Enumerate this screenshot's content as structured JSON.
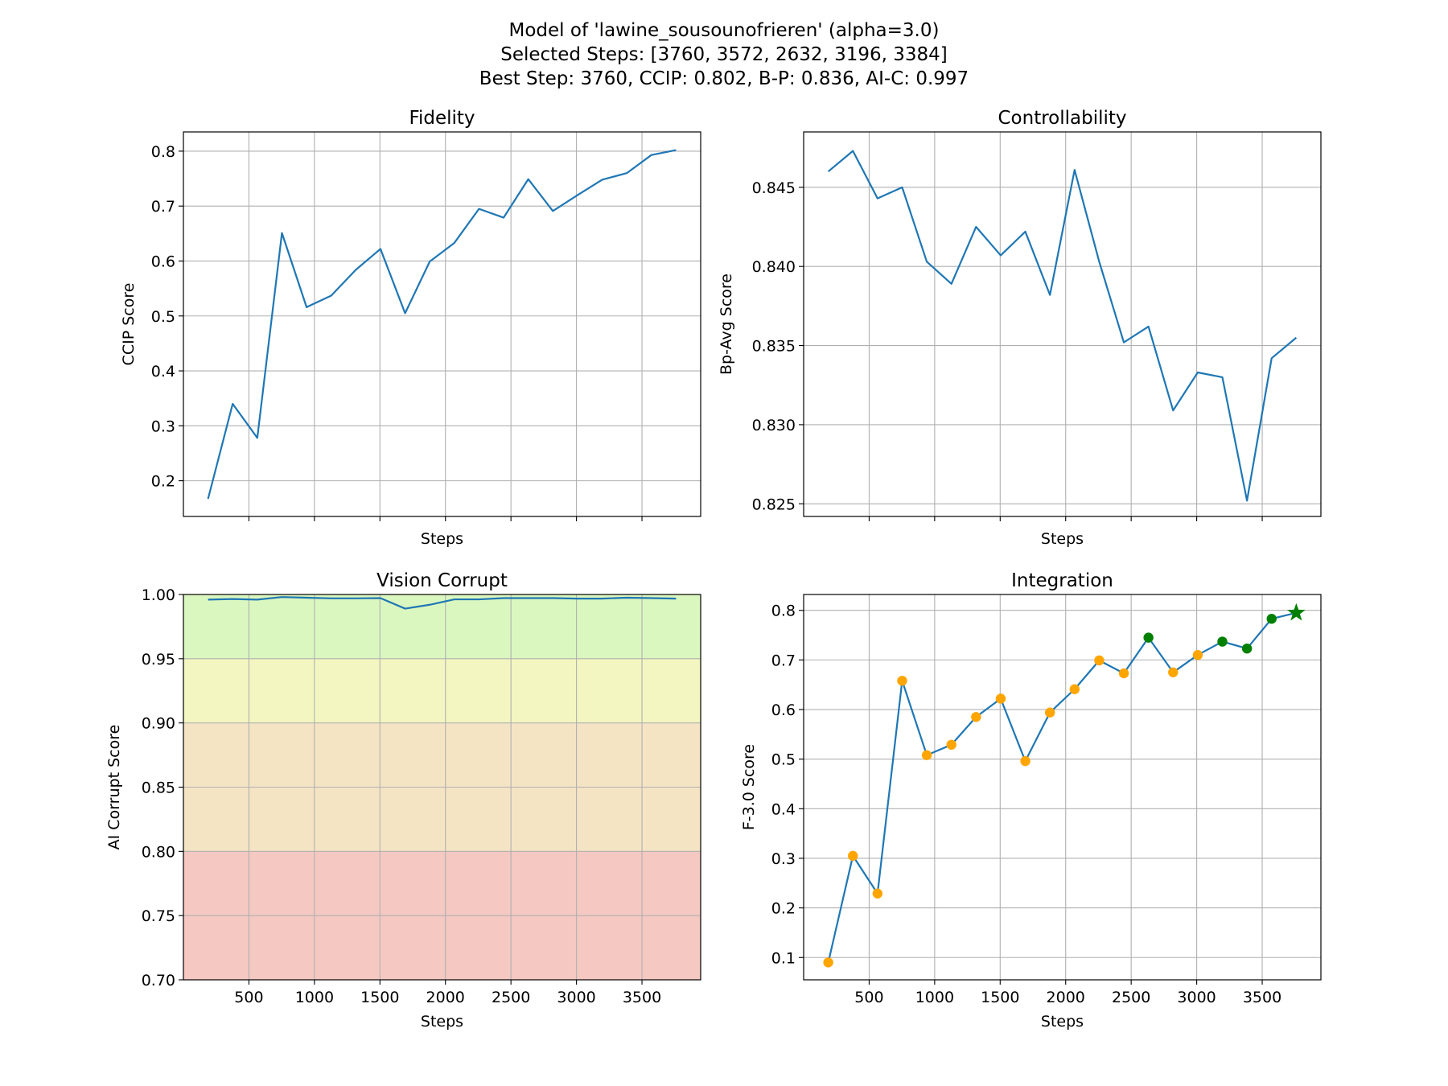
{
  "figure": {
    "title_lines": [
      "Model of 'lawine_sousounofrieren' (alpha=3.0)",
      "Selected Steps: [3760, 3572, 2632, 3196, 3384]",
      "Best Step: 3760, CCIP: 0.802, B-P: 0.836, AI-C: 0.997"
    ]
  },
  "chart_data": [
    {
      "type": "line",
      "title": "Fidelity",
      "xlabel": "Steps",
      "ylabel": "CCIP Score",
      "xlim": [
        0,
        3948
      ],
      "ylim": [
        0.135,
        0.835
      ],
      "xticks": [
        500,
        1000,
        1500,
        2000,
        2500,
        3000,
        3500
      ],
      "show_xtick_labels": false,
      "yticks": [
        0.2,
        0.3,
        0.4,
        0.5,
        0.6,
        0.7,
        0.8
      ],
      "ytick_labels": [
        "0.2",
        "0.3",
        "0.4",
        "0.5",
        "0.6",
        "0.7",
        "0.8"
      ],
      "grid": true,
      "color": "#1f77b4",
      "x": [
        188,
        376,
        564,
        752,
        940,
        1128,
        1316,
        1504,
        1692,
        1880,
        2068,
        2256,
        2444,
        2632,
        2820,
        3008,
        3196,
        3384,
        3572,
        3760
      ],
      "y": [
        0.167,
        0.34,
        0.278,
        0.651,
        0.516,
        0.537,
        0.584,
        0.622,
        0.505,
        0.599,
        0.633,
        0.695,
        0.679,
        0.749,
        0.691,
        0.72,
        0.748,
        0.76,
        0.793,
        0.802
      ]
    },
    {
      "type": "line",
      "title": "Controllability",
      "xlabel": "Steps",
      "ylabel": "Bp-Avg Score",
      "xlim": [
        0,
        3948
      ],
      "ylim": [
        0.8242,
        0.8485
      ],
      "xticks": [
        500,
        1000,
        1500,
        2000,
        2500,
        3000,
        3500
      ],
      "show_xtick_labels": false,
      "yticks": [
        0.825,
        0.83,
        0.835,
        0.84,
        0.845
      ],
      "ytick_labels": [
        "0.825",
        "0.830",
        "0.835",
        "0.840",
        "0.845"
      ],
      "grid": true,
      "color": "#1f77b4",
      "x": [
        188,
        376,
        564,
        752,
        940,
        1128,
        1316,
        1504,
        1692,
        1880,
        2068,
        2256,
        2444,
        2632,
        2820,
        3008,
        3196,
        3384,
        3572,
        3760
      ],
      "y": [
        0.846,
        0.8473,
        0.8443,
        0.845,
        0.8403,
        0.8389,
        0.8425,
        0.8407,
        0.8422,
        0.8382,
        0.8461,
        0.8403,
        0.8352,
        0.8362,
        0.8309,
        0.8333,
        0.833,
        0.8252,
        0.8342,
        0.8355
      ]
    },
    {
      "type": "line",
      "title": "Vision Corrupt",
      "xlabel": "Steps",
      "ylabel": "AI Corrupt Score",
      "xlim": [
        0,
        3948
      ],
      "ylim": [
        0.7,
        1.0
      ],
      "xticks": [
        500,
        1000,
        1500,
        2000,
        2500,
        3000,
        3500
      ],
      "show_xtick_labels": true,
      "xtick_labels": [
        "500",
        "1000",
        "1500",
        "2000",
        "2500",
        "3000",
        "3500"
      ],
      "yticks": [
        0.7,
        0.75,
        0.8,
        0.85,
        0.9,
        0.95,
        1.0
      ],
      "ytick_labels": [
        "0.70",
        "0.75",
        "0.80",
        "0.85",
        "0.90",
        "0.95",
        "1.00"
      ],
      "grid": true,
      "color": "#1f77b4",
      "bands": [
        {
          "from": 0.95,
          "to": 1.0,
          "color": "#dbf7c0"
        },
        {
          "from": 0.9,
          "to": 0.95,
          "color": "#f3f6c0"
        },
        {
          "from": 0.8,
          "to": 0.9,
          "color": "#f5e4c4"
        },
        {
          "from": 0.7,
          "to": 0.8,
          "color": "#f5c8c2"
        }
      ],
      "x": [
        188,
        376,
        564,
        752,
        940,
        1128,
        1316,
        1504,
        1692,
        1880,
        2068,
        2256,
        2444,
        2632,
        2820,
        3008,
        3196,
        3384,
        3572,
        3760
      ],
      "y": [
        0.996,
        0.9965,
        0.996,
        0.998,
        0.9975,
        0.997,
        0.997,
        0.9972,
        0.989,
        0.992,
        0.9962,
        0.9962,
        0.9972,
        0.9972,
        0.9972,
        0.9968,
        0.9968,
        0.9975,
        0.9972,
        0.9968
      ]
    },
    {
      "type": "line",
      "title": "Integration",
      "xlabel": "Steps",
      "ylabel": "F-3.0 Score",
      "xlim": [
        0,
        3948
      ],
      "ylim": [
        0.055,
        0.832
      ],
      "xticks": [
        500,
        1000,
        1500,
        2000,
        2500,
        3000,
        3500
      ],
      "show_xtick_labels": true,
      "xtick_labels": [
        "500",
        "1000",
        "1500",
        "2000",
        "2500",
        "3000",
        "3500"
      ],
      "yticks": [
        0.1,
        0.2,
        0.3,
        0.4,
        0.5,
        0.6,
        0.7,
        0.8
      ],
      "ytick_labels": [
        "0.1",
        "0.2",
        "0.3",
        "0.4",
        "0.5",
        "0.6",
        "0.7",
        "0.8"
      ],
      "grid": true,
      "color": "#1f77b4",
      "marker_default_color": "#ffa500",
      "marker_selected_color": "#008000",
      "selected_steps": [
        3572,
        2632,
        3196,
        3384
      ],
      "best_step": 3760,
      "x": [
        188,
        376,
        564,
        752,
        940,
        1128,
        1316,
        1504,
        1692,
        1880,
        2068,
        2256,
        2444,
        2632,
        2820,
        3008,
        3196,
        3384,
        3572,
        3760
      ],
      "y": [
        0.09,
        0.305,
        0.229,
        0.658,
        0.508,
        0.529,
        0.585,
        0.622,
        0.496,
        0.594,
        0.641,
        0.699,
        0.673,
        0.745,
        0.675,
        0.71,
        0.737,
        0.723,
        0.783,
        0.795
      ]
    }
  ]
}
